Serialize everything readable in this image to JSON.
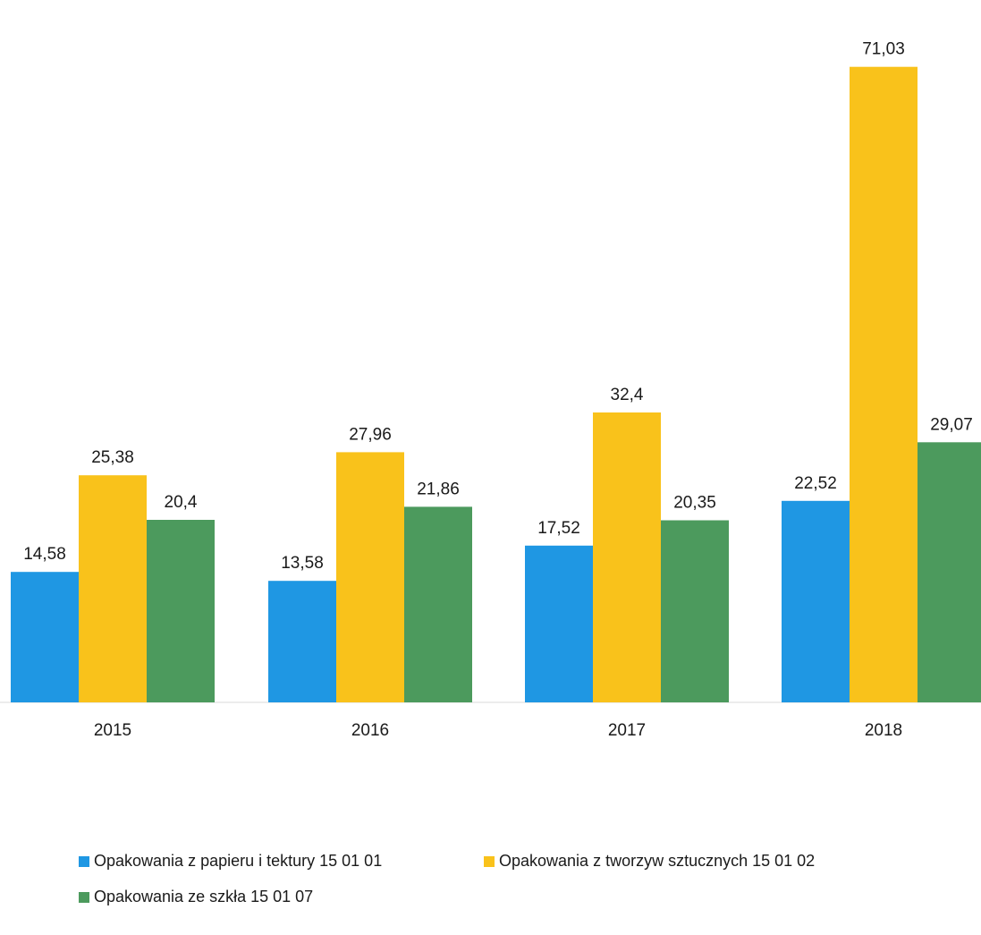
{
  "chart_data": {
    "type": "bar",
    "title": "",
    "xlabel": "",
    "ylabel": "",
    "categories": [
      "2015",
      "2016",
      "2017",
      "2018"
    ],
    "ylim": [
      0,
      75
    ],
    "grid": false,
    "legend_position": "bottom",
    "series": [
      {
        "name": "Opakowania z papieru i tektury 15 01 01",
        "color": "#1f97e3",
        "values": [
          14.58,
          13.58,
          17.52,
          22.52
        ],
        "labels": [
          "14,58",
          "13,58",
          "17,52",
          "22,52"
        ]
      },
      {
        "name": "Opakowania z tworzyw sztucznych 15 01 02",
        "color": "#f9c21b",
        "values": [
          25.38,
          27.96,
          32.4,
          71.03
        ],
        "labels": [
          "25,38",
          "27,96",
          "32,4",
          "71,03"
        ]
      },
      {
        "name": "Opakowania ze szkła 15 01 07",
        "color": "#4c9a5d",
        "values": [
          20.4,
          21.86,
          20.35,
          29.07
        ],
        "labels": [
          "20,4",
          "21,86",
          "20,35",
          "29,07"
        ]
      }
    ]
  }
}
